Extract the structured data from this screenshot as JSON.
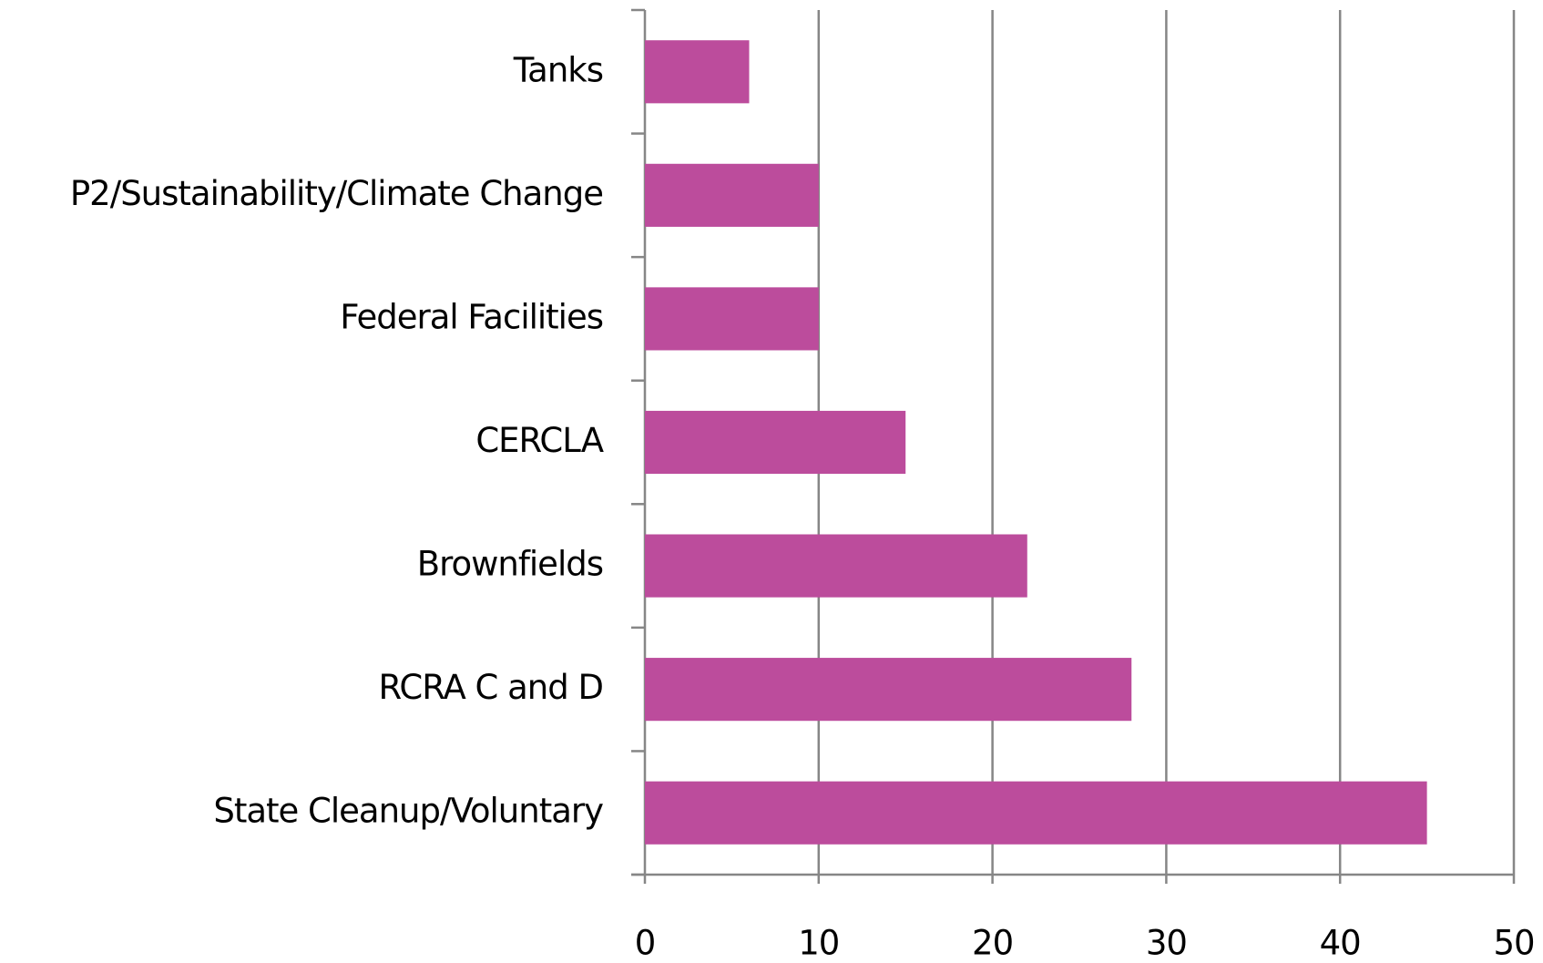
{
  "chart_data": {
    "type": "hbar",
    "categories": [
      "Tanks",
      "P2/Sustainability/Climate Change",
      "Federal Facilities",
      "CERCLA",
      "Brownfields",
      "RCRA C and D",
      "State Cleanup/Voluntary"
    ],
    "values": [
      6,
      10,
      10,
      15,
      22,
      28,
      45
    ],
    "color": "#bc4c9c",
    "xlim": [
      0,
      50
    ],
    "xticks": [
      0,
      10,
      20,
      30,
      40,
      50
    ],
    "grid": true
  }
}
